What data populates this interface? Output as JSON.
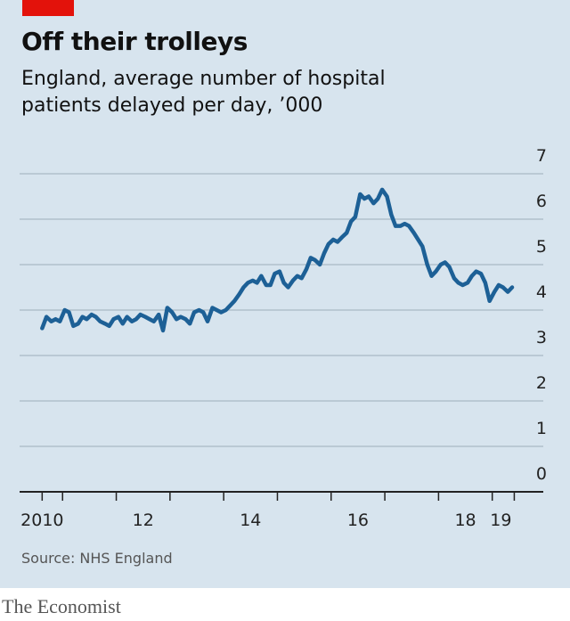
{
  "chart_data": {
    "type": "line",
    "title": "Off their trolleys",
    "subtitle": "England, average number of hospital patients delayed per day, ’000",
    "source": "Source: NHS England",
    "x": [
      2010.62,
      2010.7,
      2010.79,
      2010.87,
      2010.95,
      2011.04,
      2011.12,
      2011.2,
      2011.29,
      2011.37,
      2011.45,
      2011.54,
      2011.62,
      2011.7,
      2011.79,
      2011.87,
      2011.95,
      2012.04,
      2012.12,
      2012.2,
      2012.29,
      2012.37,
      2012.45,
      2012.54,
      2012.62,
      2012.7,
      2012.79,
      2012.87,
      2012.95,
      2013.04,
      2013.12,
      2013.2,
      2013.29,
      2013.37,
      2013.45,
      2013.54,
      2013.62,
      2013.7,
      2013.79,
      2013.87,
      2013.95,
      2014.04,
      2014.12,
      2014.2,
      2014.29,
      2014.37,
      2014.45,
      2014.54,
      2014.62,
      2014.7,
      2014.79,
      2014.87,
      2014.95,
      2015.04,
      2015.12,
      2015.2,
      2015.29,
      2015.37,
      2015.45,
      2015.54,
      2015.62,
      2015.7,
      2015.79,
      2015.87,
      2015.95,
      2016.04,
      2016.12,
      2016.2,
      2016.29,
      2016.37,
      2016.45,
      2016.54,
      2016.62,
      2016.7,
      2016.79,
      2016.87,
      2016.95,
      2017.04,
      2017.12,
      2017.2,
      2017.29,
      2017.37,
      2017.45,
      2017.54,
      2017.62,
      2017.7,
      2017.79,
      2017.87,
      2017.95,
      2018.04,
      2018.12,
      2018.2,
      2018.29,
      2018.37,
      2018.45,
      2018.54,
      2018.62,
      2018.7,
      2018.79,
      2018.87,
      2018.95,
      2019.04,
      2019.12,
      2019.2,
      2019.29,
      2019.37
    ],
    "series": [
      {
        "color": "#1d6096",
        "values": [
          3.6,
          3.85,
          3.75,
          3.8,
          3.75,
          4.0,
          3.95,
          3.65,
          3.7,
          3.85,
          3.8,
          3.9,
          3.85,
          3.75,
          3.7,
          3.65,
          3.8,
          3.85,
          3.7,
          3.85,
          3.75,
          3.8,
          3.9,
          3.85,
          3.8,
          3.75,
          3.9,
          3.55,
          4.05,
          3.95,
          3.8,
          3.85,
          3.8,
          3.7,
          3.95,
          4.0,
          3.95,
          3.75,
          4.05,
          4.0,
          3.95,
          4.0,
          4.1,
          4.2,
          4.35,
          4.5,
          4.6,
          4.65,
          4.6,
          4.75,
          4.55,
          4.55,
          4.8,
          4.85,
          4.6,
          4.5,
          4.65,
          4.75,
          4.7,
          4.9,
          5.15,
          5.1,
          5.0,
          5.25,
          5.45,
          5.55,
          5.5,
          5.6,
          5.7,
          5.95,
          6.05,
          6.55,
          6.45,
          6.5,
          6.35,
          6.45,
          6.65,
          6.5,
          6.1,
          5.85,
          5.85,
          5.9,
          5.85,
          5.7,
          5.55,
          5.4,
          5.0,
          4.75,
          4.85,
          5.0,
          5.05,
          4.95,
          4.7,
          4.6,
          4.55,
          4.6,
          4.75,
          4.85,
          4.8,
          4.6,
          4.2,
          4.4,
          4.55,
          4.5,
          4.4,
          4.5
        ]
      }
    ],
    "xlim": [
      2010.2,
      2019.95
    ],
    "xticks": [
      {
        "value": 2010.62,
        "label": "2010"
      },
      {
        "value": 2012.5,
        "label": "12"
      },
      {
        "value": 2014.5,
        "label": "14"
      },
      {
        "value": 2016.5,
        "label": "16"
      },
      {
        "value": 2018.5,
        "label": "18"
      },
      {
        "value": 2019.16,
        "label": "19"
      }
    ],
    "xminor_ticks": [
      2010.62,
      2011,
      2012,
      2013,
      2014,
      2015,
      2016,
      2017,
      2018,
      2019,
      2019.41
    ],
    "ylim": [
      0,
      7
    ],
    "yticks": [
      0,
      1,
      2,
      3,
      4,
      5,
      6,
      7
    ],
    "grid": true
  },
  "footer": "The Economist"
}
